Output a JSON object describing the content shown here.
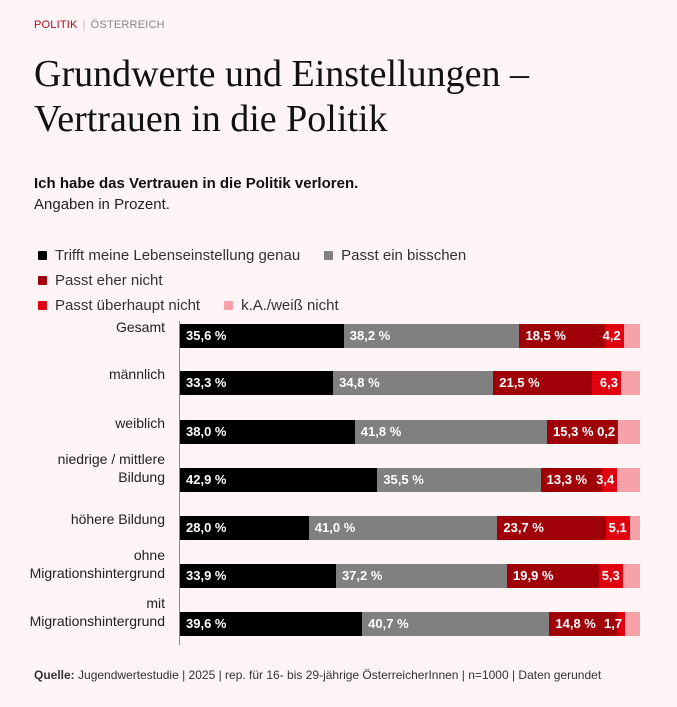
{
  "header": {
    "category": "POLITIK",
    "subcategory": "ÖSTERREICH"
  },
  "title": "Grundwerte und Einstellungen – Vertrauen in die Politik",
  "subtitle": "Ich habe das Vertrauen in die Politik verloren.",
  "note": "Angaben in Prozent.",
  "source": {
    "label": "Quelle:",
    "text": " Jugendwertestudie | 2025 | rep. für 16- bis 29-jährige ÖsterreicherInnen | n=1000 | Daten gerundet"
  },
  "chart_data": {
    "type": "bar",
    "orientation": "horizontal",
    "stacked": true,
    "xlim": [
      0,
      100
    ],
    "legend_position": "top",
    "categories": [
      "Gesamt",
      "männlich",
      "weiblich",
      "niedrige / mittlere Bildung",
      "höhere Bildung",
      "ohne Migrationshintergrund",
      "mit Migrationshintergrund"
    ],
    "series": [
      {
        "name": "Trifft meine Lebenseinstellung genau",
        "color": "#000000",
        "values": [
          35.6,
          33.3,
          38.0,
          42.9,
          28.0,
          33.9,
          39.6
        ],
        "labels": [
          "35,6 %",
          "33,3 %",
          "38,0 %",
          "42,9 %",
          "28,0 %",
          "33,9 %",
          "39,6 %"
        ]
      },
      {
        "name": "Passt ein bisschen",
        "color": "#808080",
        "values": [
          38.2,
          34.8,
          41.8,
          35.5,
          41.0,
          37.2,
          40.7
        ],
        "labels": [
          "38,2 %",
          "34,8 %",
          "41,8 %",
          "35,5 %",
          "41,0 %",
          "37,2 %",
          "40,7 %"
        ]
      },
      {
        "name": "Passt eher nicht",
        "color": "#a00008",
        "values": [
          18.5,
          21.5,
          15.3,
          13.3,
          23.7,
          19.9,
          14.8
        ],
        "labels": [
          "18,5 %",
          "21,5 %",
          "15,3 %",
          "13,3 %",
          "23,7 %",
          "19,9 %",
          "14,8 %"
        ]
      },
      {
        "name": "Passt überhaupt nicht",
        "color": "#e0000f",
        "values": [
          4.2,
          6.3,
          0.2,
          3.4,
          5.1,
          5.3,
          1.7
        ],
        "labels": [
          "4,2 %",
          "6,3 %",
          "0,2 %",
          "3,4 %",
          "5,1 %",
          "5,3 %",
          "1,7 %"
        ]
      },
      {
        "name": "k.A./weiß nicht",
        "color": "#f7a1a8"
      }
    ]
  }
}
